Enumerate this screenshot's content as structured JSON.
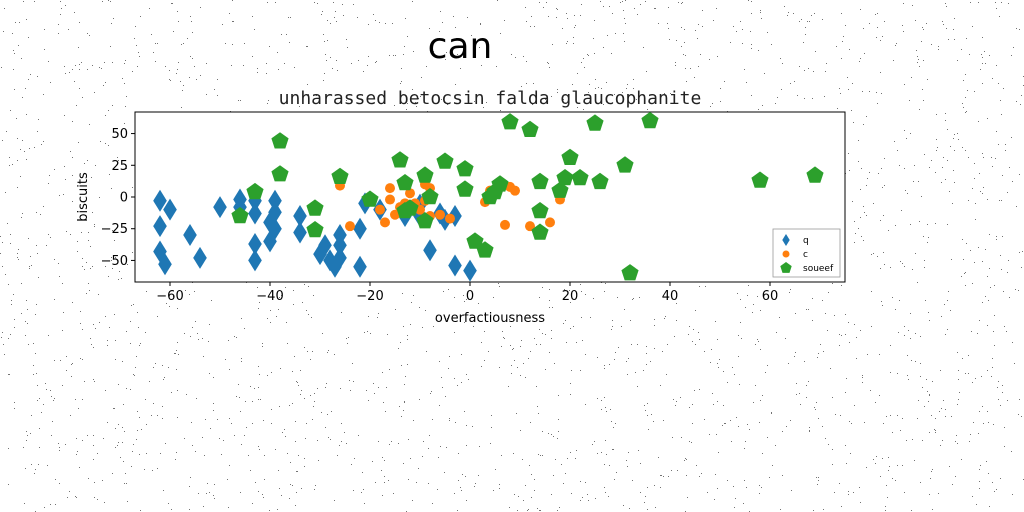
{
  "figure": {
    "title": "can"
  },
  "chart_data": {
    "type": "scatter",
    "title": "unharassed betocsin falda glaucophanite",
    "xlabel": "overfactiousness",
    "ylabel": "biscuits",
    "xlim": [
      -67,
      75
    ],
    "ylim": [
      -67,
      67
    ],
    "xticks": [
      -60,
      -40,
      -20,
      0,
      20,
      40,
      60
    ],
    "yticks": [
      -50,
      -25,
      0,
      25,
      50
    ],
    "grid": false,
    "legend_position": "lower-right",
    "series": [
      {
        "name": "q",
        "marker": "diamond",
        "color": "#1f77b4",
        "points": [
          [
            -62,
            -3
          ],
          [
            -62,
            -23
          ],
          [
            -62,
            -43
          ],
          [
            -61,
            -53
          ],
          [
            -60,
            -10
          ],
          [
            -56,
            -30
          ],
          [
            -54,
            -48
          ],
          [
            -50,
            -8
          ],
          [
            -46,
            -8
          ],
          [
            -46,
            -2
          ],
          [
            -43,
            -3
          ],
          [
            -43,
            -13
          ],
          [
            -43,
            -37
          ],
          [
            -43,
            -50
          ],
          [
            -40,
            -20
          ],
          [
            -40,
            -35
          ],
          [
            -39,
            -3
          ],
          [
            -39,
            -12
          ],
          [
            -39,
            -25
          ],
          [
            -34,
            -15
          ],
          [
            -34,
            -28
          ],
          [
            -30,
            -45
          ],
          [
            -29,
            -38
          ],
          [
            -28,
            -50
          ],
          [
            -27,
            -55
          ],
          [
            -26,
            -48
          ],
          [
            -26,
            -30
          ],
          [
            -26,
            -38
          ],
          [
            -22,
            -25
          ],
          [
            -22,
            -55
          ],
          [
            -21,
            -5
          ],
          [
            -18,
            -10
          ],
          [
            -13,
            -15
          ],
          [
            -13,
            -12
          ],
          [
            -10,
            -6
          ],
          [
            -10,
            -15
          ],
          [
            -8,
            -42
          ],
          [
            -6,
            -13
          ],
          [
            -5,
            -18
          ],
          [
            -3,
            -15
          ],
          [
            -3,
            -54
          ],
          [
            0,
            -58
          ]
        ]
      },
      {
        "name": "c",
        "marker": "circle",
        "color": "#ff7f0e",
        "points": [
          [
            -26,
            9
          ],
          [
            -24,
            -23
          ],
          [
            -20,
            -3
          ],
          [
            -18,
            -10
          ],
          [
            -17,
            -20
          ],
          [
            -16,
            7
          ],
          [
            -16,
            -2
          ],
          [
            -15,
            -14
          ],
          [
            -14,
            -8
          ],
          [
            -13,
            -5
          ],
          [
            -12,
            3
          ],
          [
            -11,
            -5
          ],
          [
            -10,
            -10
          ],
          [
            -9,
            10
          ],
          [
            -9,
            -3
          ],
          [
            -8,
            7
          ],
          [
            -8,
            -15
          ],
          [
            -6,
            -14
          ],
          [
            -4,
            -17
          ],
          [
            3,
            -4
          ],
          [
            4,
            5
          ],
          [
            6,
            12
          ],
          [
            8,
            8
          ],
          [
            9,
            5
          ],
          [
            7,
            -22
          ],
          [
            12,
            -23
          ],
          [
            16,
            -20
          ],
          [
            18,
            -2
          ]
        ]
      },
      {
        "name": "soueef",
        "marker": "pentagon",
        "color": "#2ca02c",
        "points": [
          [
            -38,
            44
          ],
          [
            -38,
            18
          ],
          [
            -46,
            -15
          ],
          [
            -43,
            4
          ],
          [
            -31,
            -9
          ],
          [
            -31,
            -26
          ],
          [
            -26,
            16
          ],
          [
            -20,
            -2
          ],
          [
            -14,
            29
          ],
          [
            -13,
            11
          ],
          [
            -13,
            -11
          ],
          [
            -12,
            -9
          ],
          [
            -9,
            17
          ],
          [
            -9,
            -19
          ],
          [
            -8,
            0
          ],
          [
            -5,
            28
          ],
          [
            -1,
            22
          ],
          [
            -1,
            6
          ],
          [
            1,
            -35
          ],
          [
            3,
            -42
          ],
          [
            4,
            0
          ],
          [
            5,
            4
          ],
          [
            6,
            10
          ],
          [
            8,
            59
          ],
          [
            12,
            53
          ],
          [
            14,
            12
          ],
          [
            14,
            -11
          ],
          [
            14,
            -28
          ],
          [
            18,
            5
          ],
          [
            19,
            15
          ],
          [
            20,
            31
          ],
          [
            22,
            15
          ],
          [
            25,
            58
          ],
          [
            26,
            12
          ],
          [
            31,
            25
          ],
          [
            32,
            -60
          ],
          [
            36,
            60
          ],
          [
            58,
            13
          ],
          [
            69,
            17
          ]
        ]
      }
    ]
  }
}
